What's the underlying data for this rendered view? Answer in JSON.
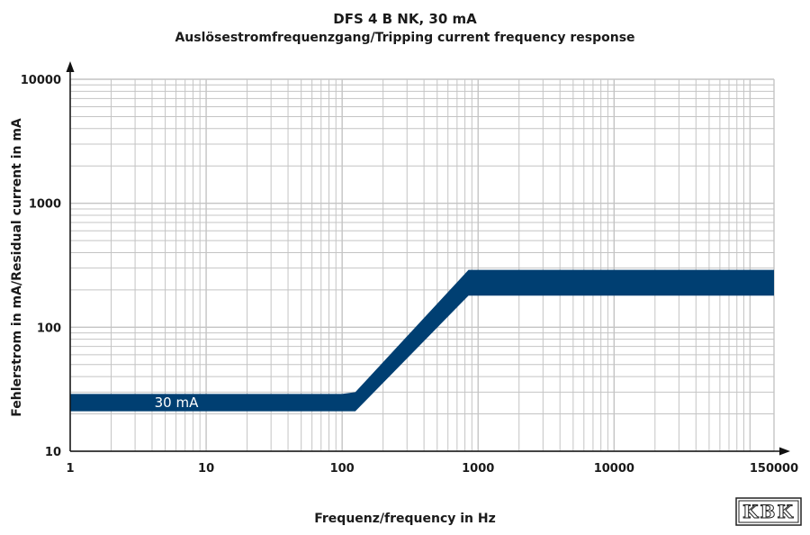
{
  "chart_data": {
    "type": "area",
    "title": "DFS 4 B NK, 30 mA",
    "subtitle": "Auslösestromfrequenzgang/Tripping current frequency response",
    "xlabel": "Frequenz/frequency in Hz",
    "ylabel": "Fehlerstrom in mA/Residual current in mA",
    "x_scale": "log",
    "y_scale": "log",
    "xlim": [
      1,
      150000
    ],
    "ylim": [
      10,
      10000
    ],
    "x_ticks": [
      "1",
      "10",
      "100",
      "1000",
      "10000",
      "150000"
    ],
    "y_ticks": [
      "10",
      "100",
      "1000",
      "10000"
    ],
    "grid": true,
    "series": [
      {
        "name": "30 mA",
        "color": "#003f72",
        "x": [
          1,
          100,
          125,
          850,
          150000
        ],
        "lower": [
          21,
          21,
          21,
          180,
          180
        ],
        "upper": [
          29,
          29,
          30,
          290,
          290
        ]
      }
    ]
  },
  "logo_text": "KBK"
}
